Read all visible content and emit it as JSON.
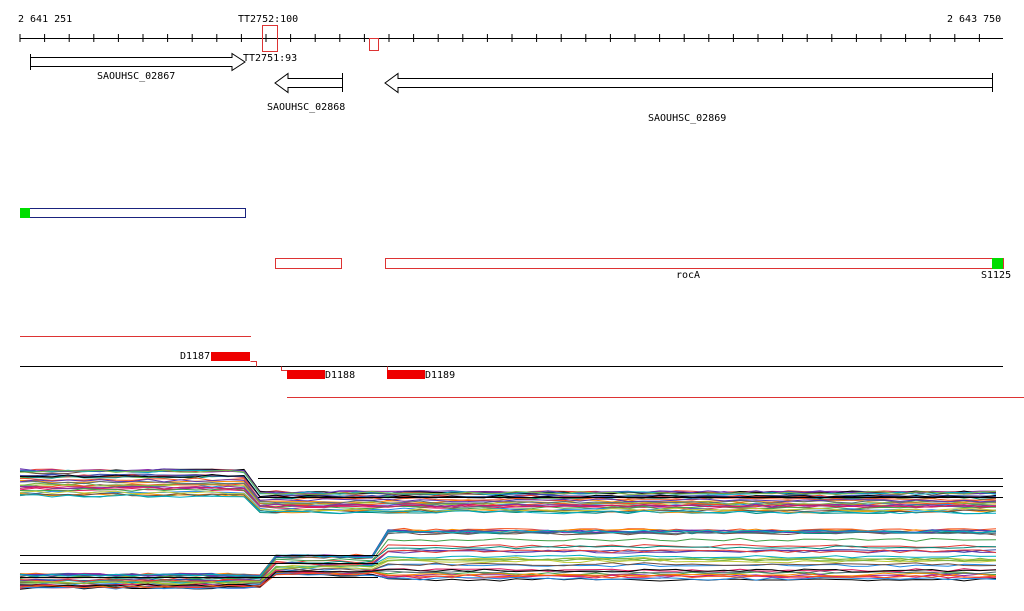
{
  "ruler": {
    "start_label": "2 641 251",
    "marker_label": "TT2752:100",
    "end_label": "2 643 750"
  },
  "terminators": {
    "label": "TT2751:93"
  },
  "genes": [
    {
      "label": "SAOUHSC_02867"
    },
    {
      "label": "SAOUHSC_02868"
    },
    {
      "label": "SAOUHSC_02869"
    }
  ],
  "transcripts": [
    {
      "label": "rocA"
    },
    {
      "label": "S1125"
    }
  ],
  "segments": [
    {
      "label": "D1187"
    },
    {
      "label": "D1188"
    },
    {
      "label": "D1189"
    }
  ]
}
